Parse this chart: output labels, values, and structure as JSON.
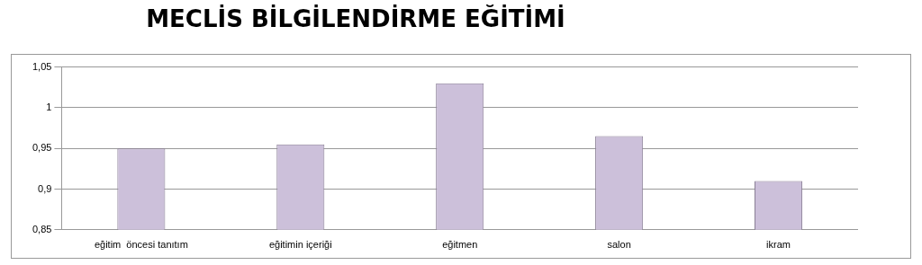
{
  "chart_data": {
    "type": "bar",
    "title": "MECLİS BİLGİLENDİRME EĞİTİMİ",
    "categories": [
      "eğitim  öncesi tanıtım",
      "eğitimin içeriği",
      "eğitmen",
      "salon",
      "ikram"
    ],
    "values": [
      0.95,
      0.955,
      1.03,
      0.965,
      0.91
    ],
    "color": "#ccc0da",
    "ylim": [
      0.85,
      1.05
    ],
    "yticks": [
      {
        "value": 0.85,
        "label": "0,85"
      },
      {
        "value": 0.9,
        "label": "0,9"
      },
      {
        "value": 0.95,
        "label": "0,95"
      },
      {
        "value": 1,
        "label": "1"
      },
      {
        "value": 1.05,
        "label": "1,05"
      }
    ],
    "grid": "y",
    "legend": false
  }
}
